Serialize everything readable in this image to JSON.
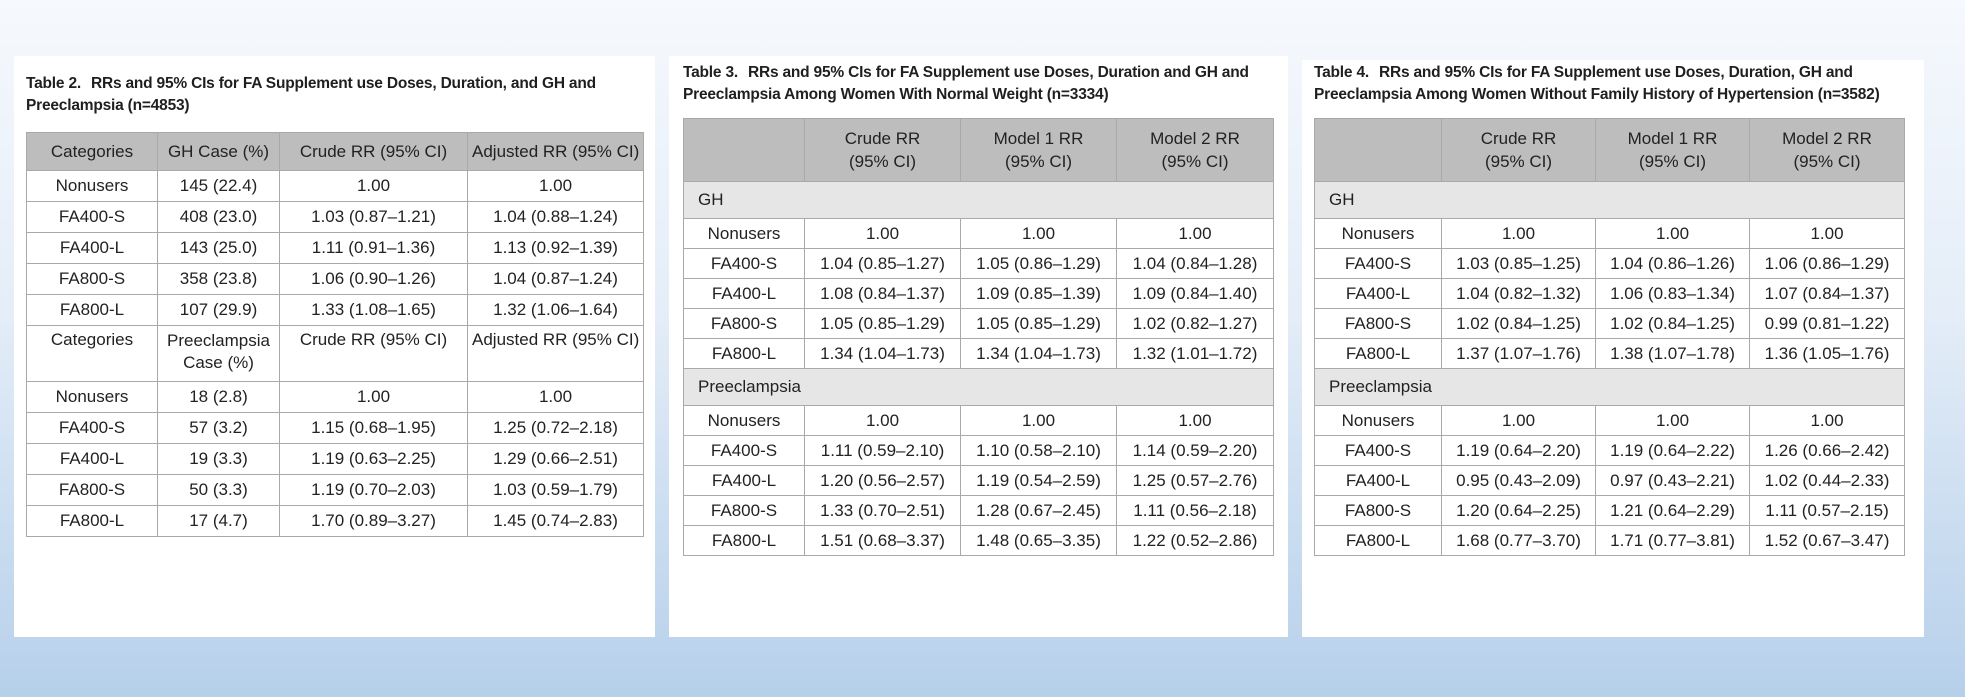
{
  "table2": {
    "caption_num": "Table 2.",
    "caption_text": "RRs and 95% CIs for FA Supplement use Doses, Duration, and GH and Preeclampsia (n=4853)",
    "header": [
      "Categories",
      "GH Case (%)",
      "Crude RR (95% CI)",
      "Adjusted RR (95% CI)"
    ],
    "gh_rows": [
      [
        "Nonusers",
        "145 (22.4)",
        "1.00",
        "1.00"
      ],
      [
        "FA400-S",
        "408 (23.0)",
        "1.03 (0.87–1.21)",
        "1.04 (0.88–1.24)"
      ],
      [
        "FA400-L",
        "143 (25.0)",
        "1.11 (0.91–1.36)",
        "1.13 (0.92–1.39)"
      ],
      [
        "FA800-S",
        "358 (23.8)",
        "1.06 (0.90–1.26)",
        "1.04 (0.87–1.24)"
      ],
      [
        "FA800-L",
        "107 (29.9)",
        "1.33 (1.08–1.65)",
        "1.32 (1.06–1.64)"
      ]
    ],
    "sub_header": [
      "Categories",
      "Preeclampsia Case (%)",
      "Crude RR (95% CI)",
      "Adjusted RR (95% CI)"
    ],
    "pe_rows": [
      [
        "Nonusers",
        "18 (2.8)",
        "1.00",
        "1.00"
      ],
      [
        "FA400-S",
        "57 (3.2)",
        "1.15 (0.68–1.95)",
        "1.25 (0.72–2.18)"
      ],
      [
        "FA400-L",
        "19 (3.3)",
        "1.19 (0.63–2.25)",
        "1.29 (0.66–2.51)"
      ],
      [
        "FA800-S",
        "50 (3.3)",
        "1.19 (0.70–2.03)",
        "1.03 (0.59–1.79)"
      ],
      [
        "FA800-L",
        "17 (4.7)",
        "1.70 (0.89–3.27)",
        "1.45 (0.74–2.83)"
      ]
    ]
  },
  "table3": {
    "caption_num": "Table 3.",
    "caption_text": "RRs and 95% CIs for FA Supplement use Doses, Duration and GH and Preeclampsia Among Women With Normal Weight (n=3334)",
    "header": [
      "",
      "Crude RR (95% CI)",
      "Model 1 RR (95% CI)",
      "Model 2 RR (95% CI)"
    ],
    "group_gh": "GH",
    "gh_rows": [
      [
        "Nonusers",
        "1.00",
        "1.00",
        "1.00"
      ],
      [
        "FA400-S",
        "1.04 (0.85–1.27)",
        "1.05 (0.86–1.29)",
        "1.04 (0.84–1.28)"
      ],
      [
        "FA400-L",
        "1.08 (0.84–1.37)",
        "1.09 (0.85–1.39)",
        "1.09 (0.84–1.40)"
      ],
      [
        "FA800-S",
        "1.05 (0.85–1.29)",
        "1.05 (0.85–1.29)",
        "1.02 (0.82–1.27)"
      ],
      [
        "FA800-L",
        "1.34 (1.04–1.73)",
        "1.34 (1.04–1.73)",
        "1.32 (1.01–1.72)"
      ]
    ],
    "group_pe": "Preeclampsia",
    "pe_rows": [
      [
        "Nonusers",
        "1.00",
        "1.00",
        "1.00"
      ],
      [
        "FA400-S",
        "1.11 (0.59–2.10)",
        "1.10 (0.58–2.10)",
        "1.14 (0.59–2.20)"
      ],
      [
        "FA400-L",
        "1.20 (0.56–2.57)",
        "1.19 (0.54–2.59)",
        "1.25 (0.57–2.76)"
      ],
      [
        "FA800-S",
        "1.33 (0.70–2.51)",
        "1.28 (0.67–2.45)",
        "1.11 (0.56–2.18)"
      ],
      [
        "FA800-L",
        "1.51 (0.68–3.37)",
        "1.48 (0.65–3.35)",
        "1.22 (0.52–2.86)"
      ]
    ]
  },
  "table4": {
    "caption_num": "Table 4.",
    "caption_text": "RRs and 95% CIs for FA Supplement use Doses, Duration, GH and Preeclampsia Among Women Without Family History of Hypertension (n=3582)",
    "header": [
      "",
      "Crude RR (95% CI)",
      "Model 1 RR (95% CI)",
      "Model 2 RR (95% CI)"
    ],
    "group_gh": "GH",
    "gh_rows": [
      [
        "Nonusers",
        "1.00",
        "1.00",
        "1.00"
      ],
      [
        "FA400-S",
        "1.03 (0.85–1.25)",
        "1.04 (0.86–1.26)",
        "1.06 (0.86–1.29)"
      ],
      [
        "FA400-L",
        "1.04 (0.82–1.32)",
        "1.06 (0.83–1.34)",
        "1.07 (0.84–1.37)"
      ],
      [
        "FA800-S",
        "1.02 (0.84–1.25)",
        "1.02 (0.84–1.25)",
        "0.99 (0.81–1.22)"
      ],
      [
        "FA800-L",
        "1.37 (1.07–1.76)",
        "1.38 (1.07–1.78)",
        "1.36 (1.05–1.76)"
      ]
    ],
    "group_pe": "Preeclampsia",
    "pe_rows": [
      [
        "Nonusers",
        "1.00",
        "1.00",
        "1.00"
      ],
      [
        "FA400-S",
        "1.19 (0.64–2.20)",
        "1.19 (0.64–2.22)",
        "1.26 (0.66–2.42)"
      ],
      [
        "FA400-L",
        "0.95 (0.43–2.09)",
        "0.97 (0.43–2.21)",
        "1.02 (0.44–2.33)"
      ],
      [
        "FA800-S",
        "1.20 (0.64–2.25)",
        "1.21 (0.64–2.29)",
        "1.11 (0.57–2.15)"
      ],
      [
        "FA800-L",
        "1.68 (0.77–3.70)",
        "1.71 (0.77–3.81)",
        "1.52 (0.67–3.47)"
      ]
    ]
  }
}
